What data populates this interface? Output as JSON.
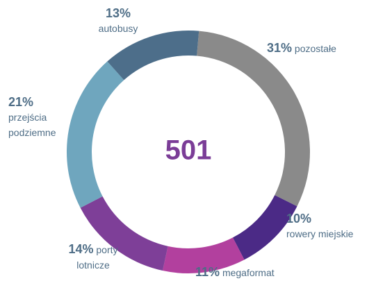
{
  "chart_data": {
    "type": "pie",
    "categories": [
      "pozostałe",
      "rowery miejskie",
      "megaformat",
      "porty lotnicze",
      "przejścia podziemne",
      "autobusy"
    ],
    "values": [
      31,
      10,
      11,
      14,
      21,
      13
    ],
    "value_labels": [
      "31%",
      "10%",
      "11%",
      "14%",
      "21%",
      "13%"
    ],
    "colors": [
      "#8a8a8a",
      "#4b2a86",
      "#b2409e",
      "#7e3f98",
      "#6fa6be",
      "#4d6e8a"
    ],
    "total": 501
  }
}
